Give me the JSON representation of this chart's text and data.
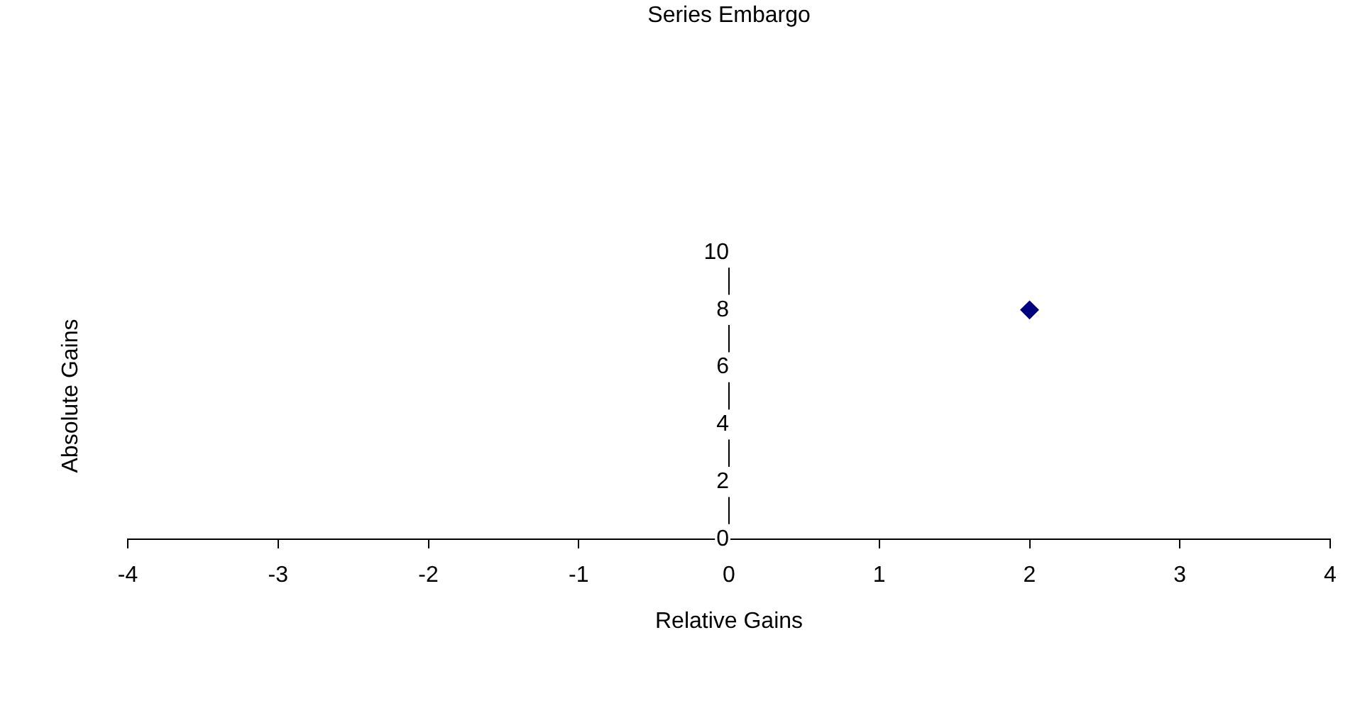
{
  "chart_data": {
    "type": "scatter",
    "title": "Series Embargo",
    "xlabel": "Relative Gains",
    "ylabel": "Absolute Gains",
    "x": [
      2
    ],
    "series": [
      {
        "color": "#000080",
        "values": [
          8
        ]
      }
    ],
    "xlim": [
      -4,
      4
    ],
    "xticks": [
      -4,
      -3,
      -2,
      -1,
      0,
      1,
      2,
      3,
      4
    ],
    "ylim": [
      0,
      10
    ],
    "yticks": [
      0,
      2,
      4,
      6,
      8,
      10
    ],
    "marker": "diamond",
    "grid": false,
    "legend": false
  }
}
